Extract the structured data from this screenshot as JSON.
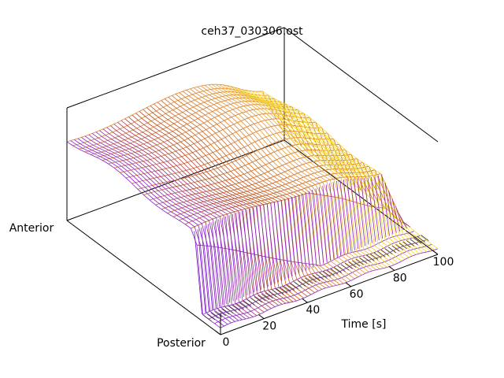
{
  "chart_data": {
    "type": "surface",
    "title": "ceh37_030306.ost",
    "xlabel": "Time [s]",
    "ylabel_front": "Posterior",
    "ylabel_back": "Anterior",
    "x_ticks": [
      "0",
      "20",
      "40",
      "60",
      "80",
      "100"
    ],
    "x_range": [
      0,
      100
    ],
    "z_range": [
      0,
      1
    ],
    "grid": false,
    "legend": "none",
    "colormap": [
      "#200030",
      "#8a1fd0",
      "#c04a10",
      "#e8a040",
      "#ffff10"
    ],
    "surface": {
      "description_free": true,
      "plateau_level": 0.72,
      "floor_level": 0.06
    }
  }
}
